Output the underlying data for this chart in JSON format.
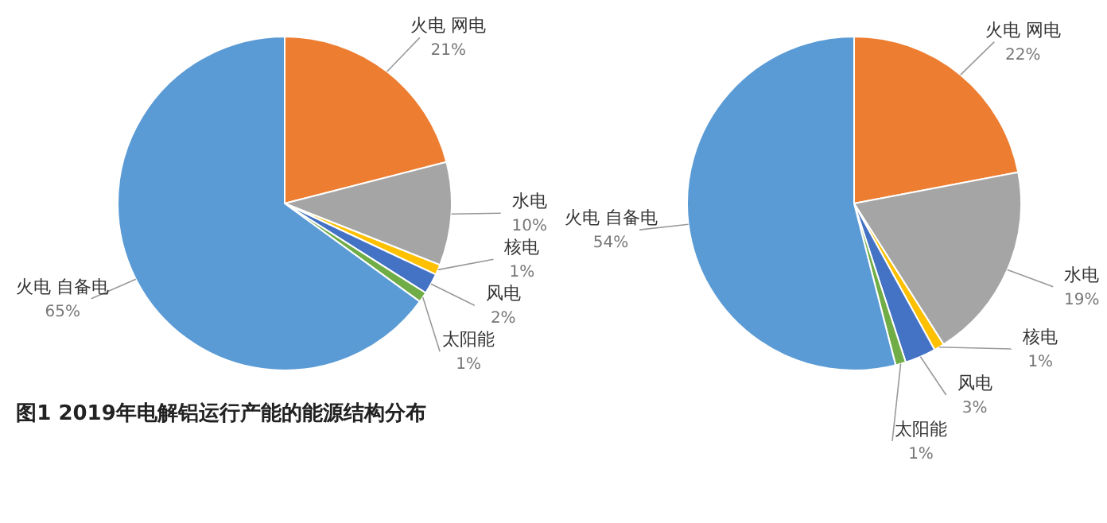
{
  "chart_data": [
    {
      "type": "pie",
      "title": "图1 2019年电解铝运行产能的能源结构分布",
      "categories": [
        "火电 网电",
        "水电",
        "核电",
        "风电",
        "太阳能",
        "火电 自备电"
      ],
      "values": [
        21,
        10,
        1,
        2,
        1,
        65
      ],
      "value_labels": [
        "21%",
        "10%",
        "1%",
        "2%",
        "1%",
        "65%"
      ],
      "colors": [
        "#ed7d31",
        "#a5a5a5",
        "#ffc000",
        "#4472c4",
        "#70ad47",
        "#5b9bd5"
      ]
    },
    {
      "type": "pie",
      "categories": [
        "火电 网电",
        "水电",
        "核电",
        "风电",
        "太阳能",
        "火电 自备电"
      ],
      "values": [
        22,
        19,
        1,
        3,
        1,
        54
      ],
      "value_labels": [
        "22%",
        "19%",
        "1%",
        "3%",
        "1%",
        "54%"
      ],
      "colors": [
        "#ed7d31",
        "#a5a5a5",
        "#ffc000",
        "#4472c4",
        "#70ad47",
        "#5b9bd5"
      ]
    }
  ]
}
